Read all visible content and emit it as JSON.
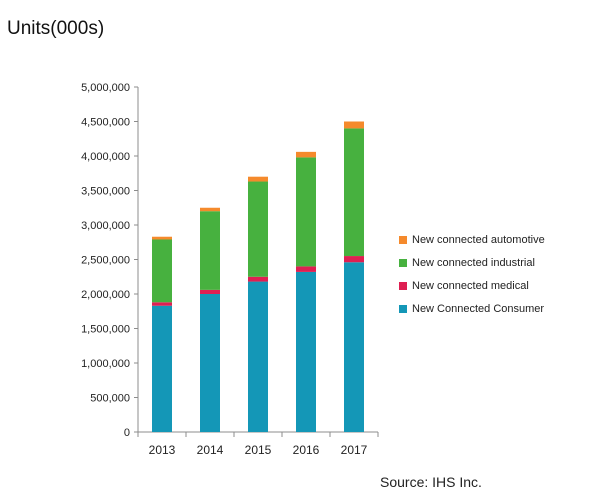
{
  "title": "Units(000s)",
  "source": "Source: IHS Inc.",
  "colors": {
    "automotive": "#f58a2c",
    "industrial": "#47b13f",
    "medical": "#de1f52",
    "consumer": "#1497b7"
  },
  "chart_data": {
    "type": "bar",
    "stacked": true,
    "categories": [
      "2013",
      "2014",
      "2015",
      "2016",
      "2017"
    ],
    "ylim": [
      0,
      5000000
    ],
    "yticks": [
      0,
      500000,
      1000000,
      1500000,
      2000000,
      2500000,
      3000000,
      3500000,
      4000000,
      4500000,
      5000000
    ],
    "ytick_labels": [
      "0",
      "500,000",
      "1,000,000",
      "1,500,000",
      "2,000,000",
      "2,500,000",
      "3,000,000",
      "3,500,000",
      "4,000,000",
      "4,500,000",
      "5,000,000"
    ],
    "legend_position": "right",
    "grid": false,
    "series": [
      {
        "name": "New Connected Consumer",
        "color": "#1497b7",
        "values": [
          1830000,
          2000000,
          2180000,
          2320000,
          2460000
        ]
      },
      {
        "name": "New connected medical",
        "color": "#de1f52",
        "values": [
          50000,
          60000,
          70000,
          80000,
          90000
        ]
      },
      {
        "name": "New connected industrial",
        "color": "#47b13f",
        "values": [
          910000,
          1140000,
          1380000,
          1580000,
          1850000
        ]
      },
      {
        "name": "New connected automotive",
        "color": "#f58a2c",
        "values": [
          40000,
          50000,
          70000,
          80000,
          100000
        ]
      }
    ],
    "legend": [
      {
        "label": "New connected automotive",
        "color": "#f58a2c"
      },
      {
        "label": "New connected industrial",
        "color": "#47b13f"
      },
      {
        "label": "New connected medical",
        "color": "#de1f52"
      },
      {
        "label": "New Connected Consumer",
        "color": "#1497b7"
      }
    ]
  }
}
